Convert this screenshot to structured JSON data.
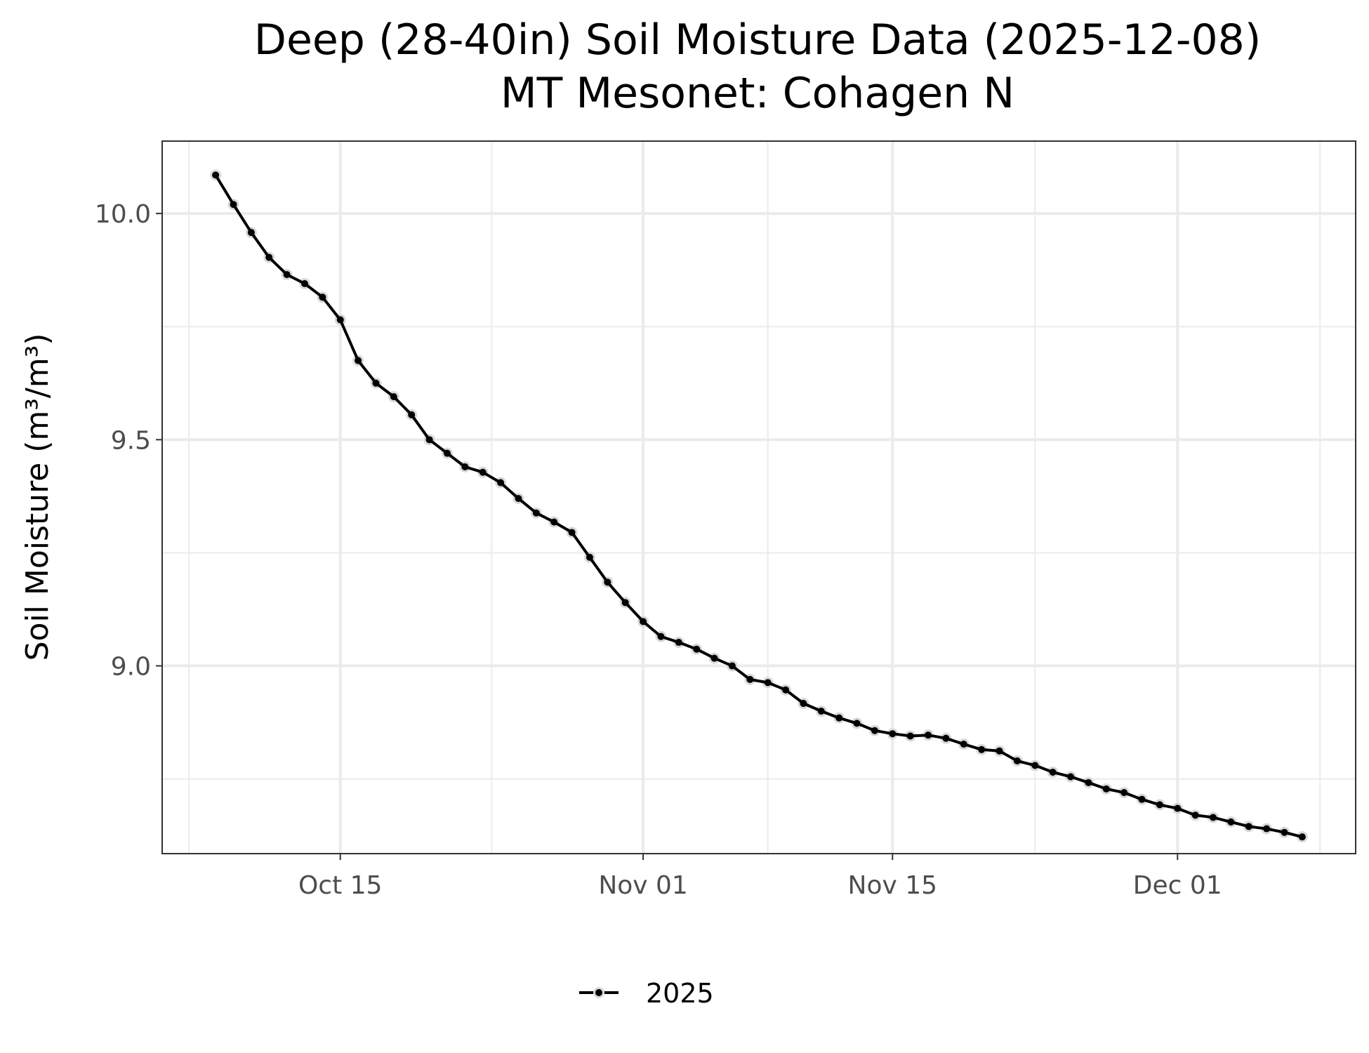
{
  "chart_data": {
    "type": "line",
    "title": "Deep (28-40in) Soil Moisture Data (2025-12-08)",
    "subtitle": "MT Mesonet: Cohagen N",
    "xlabel": "",
    "ylabel": "Soil Moisture (m³/m³)",
    "x_tick_labels": [
      "Oct 15",
      "Nov 01",
      "Nov 15",
      "Dec 01"
    ],
    "x_tick_dates": [
      "2025-10-15",
      "2025-11-01",
      "2025-11-15",
      "2025-12-01"
    ],
    "y_tick_labels": [
      "9.0",
      "9.5",
      "10.0"
    ],
    "y_tick_values": [
      9.0,
      9.5,
      10.0
    ],
    "xlim": [
      "2025-10-05",
      "2025-12-11"
    ],
    "ylim": [
      8.585,
      10.16
    ],
    "grid": true,
    "legend_position": "bottom",
    "series": [
      {
        "name": "2025",
        "color": "#000000",
        "x": [
          "2025-10-08",
          "2025-10-09",
          "2025-10-10",
          "2025-10-11",
          "2025-10-12",
          "2025-10-13",
          "2025-10-14",
          "2025-10-15",
          "2025-10-16",
          "2025-10-17",
          "2025-10-18",
          "2025-10-19",
          "2025-10-20",
          "2025-10-21",
          "2025-10-22",
          "2025-10-23",
          "2025-10-24",
          "2025-10-25",
          "2025-10-26",
          "2025-10-27",
          "2025-10-28",
          "2025-10-29",
          "2025-10-30",
          "2025-10-31",
          "2025-11-01",
          "2025-11-02",
          "2025-11-03",
          "2025-11-04",
          "2025-11-05",
          "2025-11-06",
          "2025-11-07",
          "2025-11-08",
          "2025-11-09",
          "2025-11-10",
          "2025-11-11",
          "2025-11-12",
          "2025-11-13",
          "2025-11-14",
          "2025-11-15",
          "2025-11-16",
          "2025-11-17",
          "2025-11-18",
          "2025-11-19",
          "2025-11-20",
          "2025-11-21",
          "2025-11-22",
          "2025-11-23",
          "2025-11-24",
          "2025-11-25",
          "2025-11-26",
          "2025-11-27",
          "2025-11-28",
          "2025-11-29",
          "2025-11-30",
          "2025-12-01",
          "2025-12-02",
          "2025-12-03",
          "2025-12-04",
          "2025-12-05",
          "2025-12-06",
          "2025-12-07",
          "2025-12-08"
        ],
        "values": [
          10.085,
          10.02,
          9.958,
          9.903,
          9.865,
          9.845,
          9.815,
          9.765,
          9.675,
          9.625,
          9.595,
          9.555,
          9.5,
          9.47,
          9.44,
          9.428,
          9.405,
          9.37,
          9.338,
          9.318,
          9.295,
          9.24,
          9.185,
          9.14,
          9.098,
          9.065,
          9.052,
          9.037,
          9.017,
          9.0,
          8.97,
          8.963,
          8.947,
          8.917,
          8.9,
          8.885,
          8.873,
          8.857,
          8.85,
          8.845,
          8.847,
          8.84,
          8.827,
          8.815,
          8.812,
          8.79,
          8.78,
          8.765,
          8.755,
          8.742,
          8.728,
          8.72,
          8.705,
          8.693,
          8.685,
          8.67,
          8.665,
          8.655,
          8.645,
          8.64,
          8.632,
          8.622
        ]
      }
    ]
  }
}
